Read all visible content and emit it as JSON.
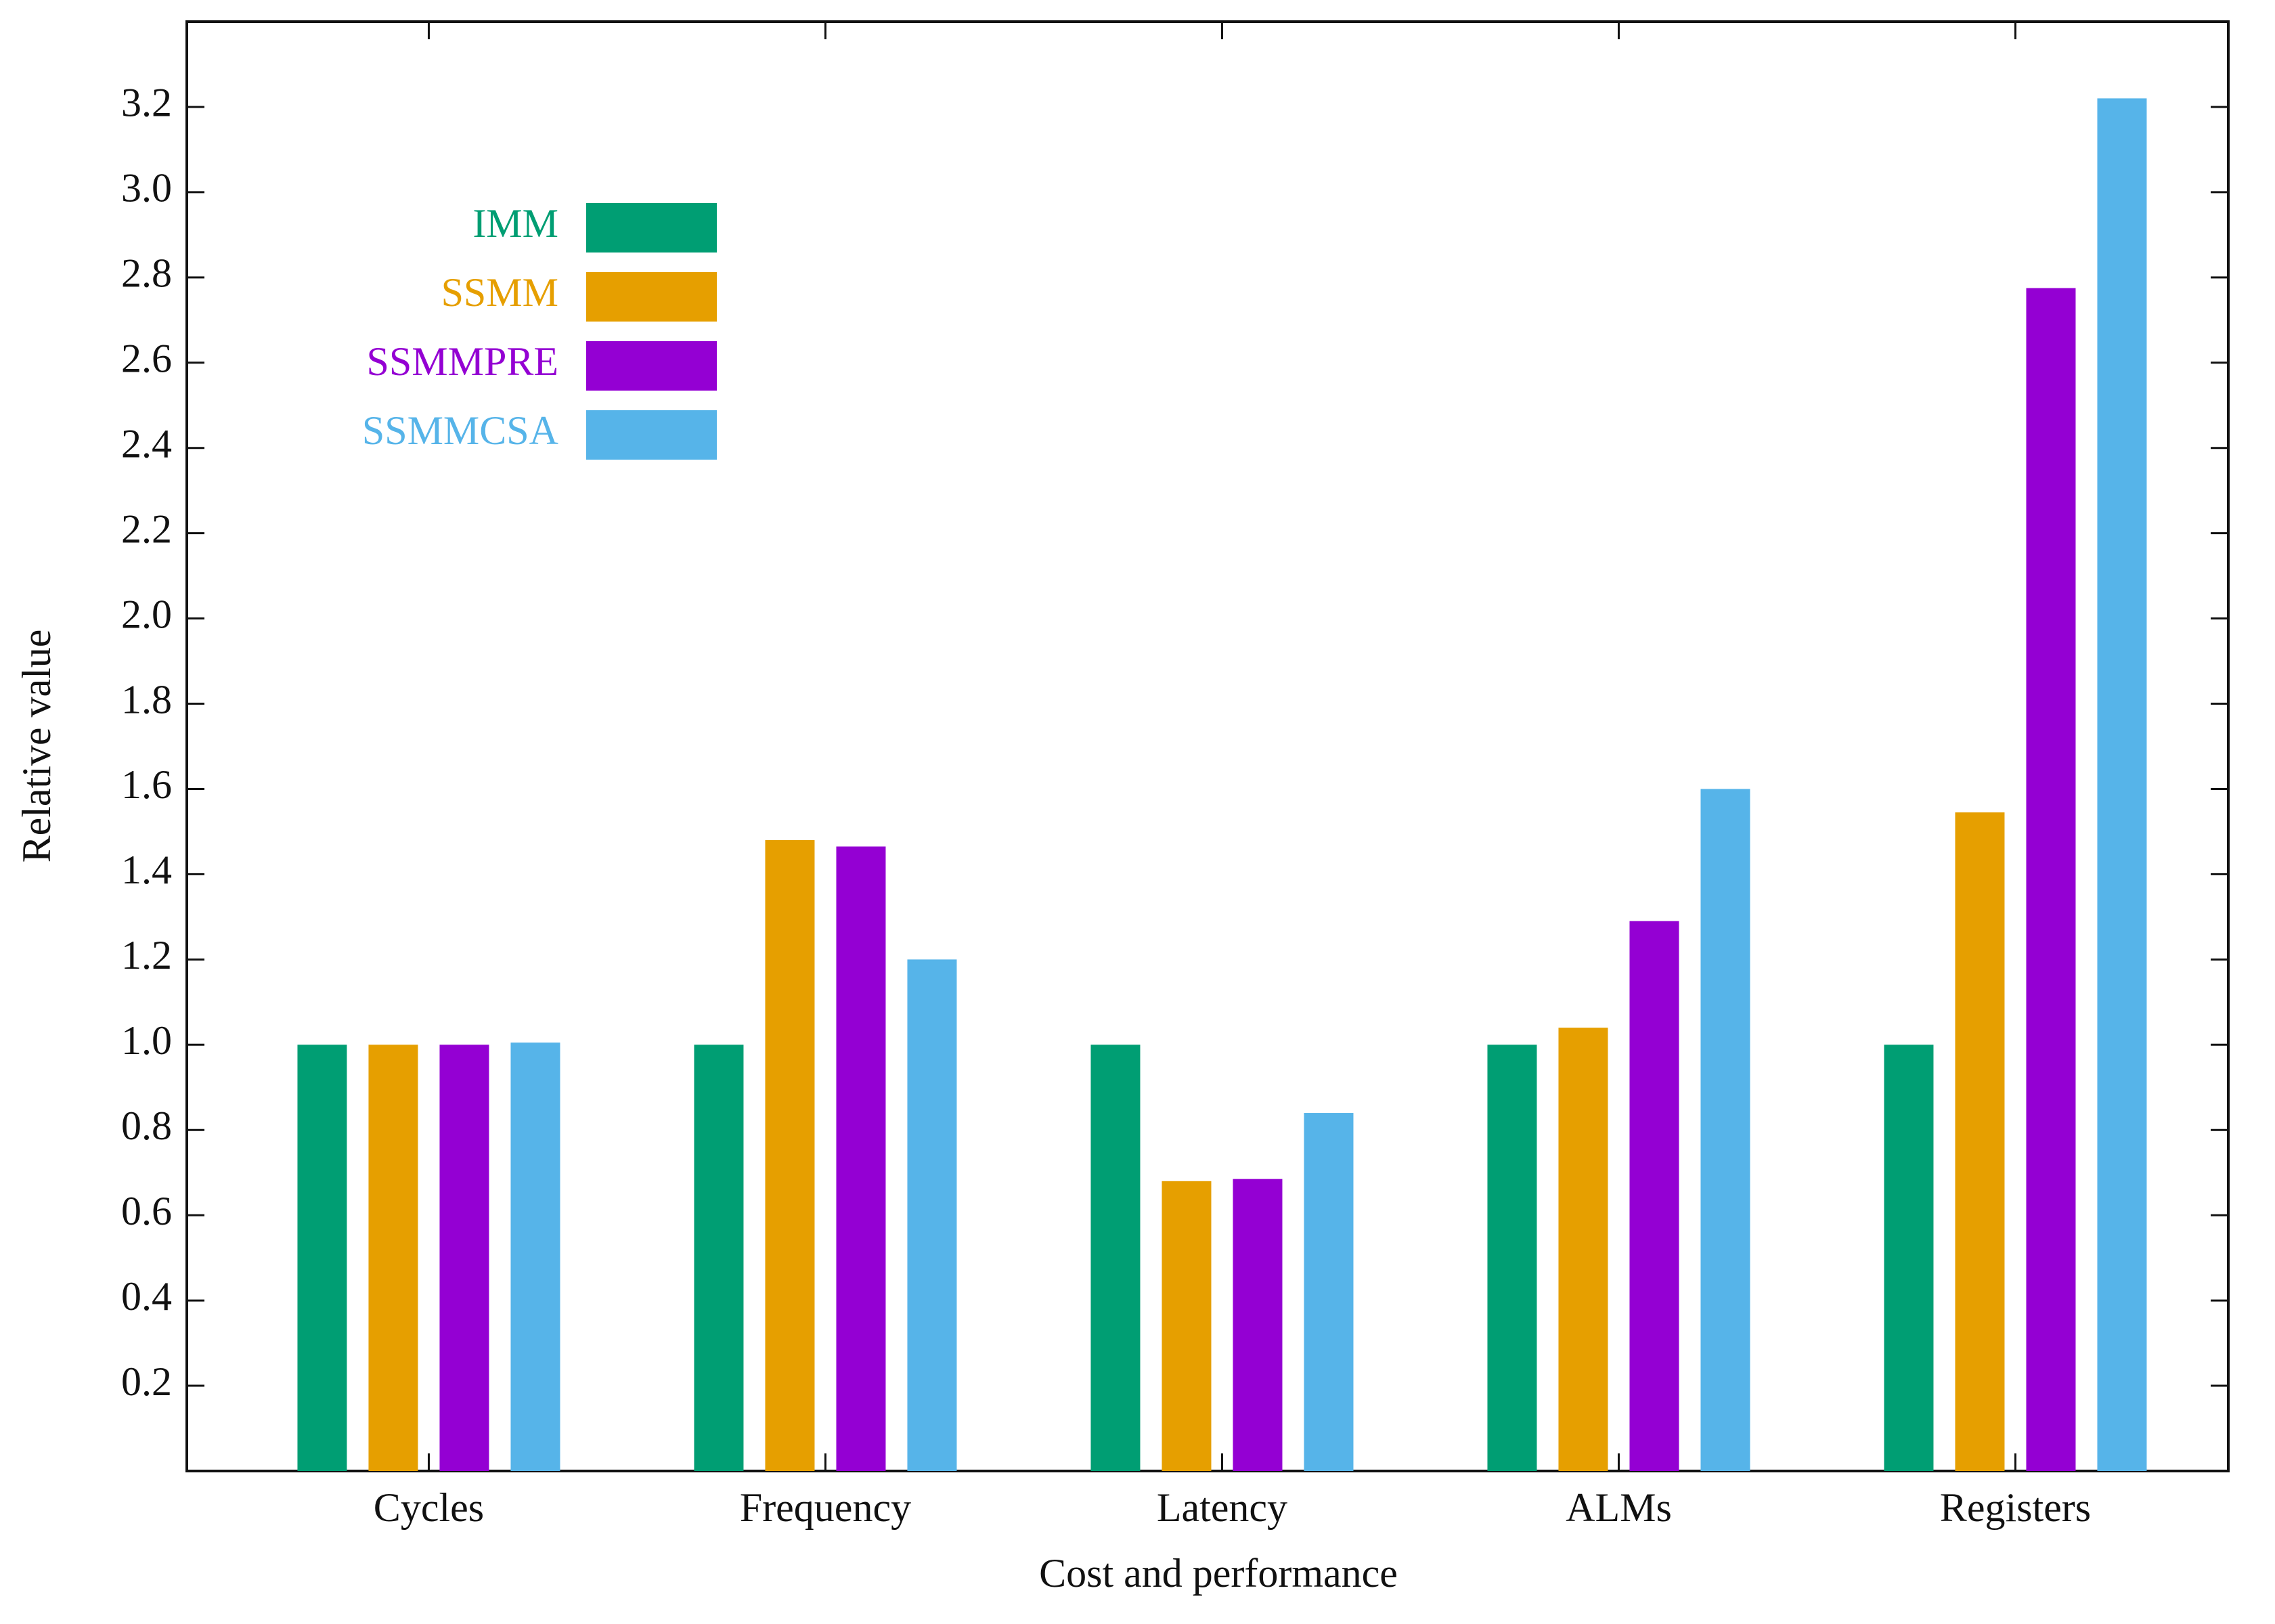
{
  "chart_data": {
    "type": "bar",
    "x_label": "Cost and performance",
    "y_label": "Relative value",
    "categories": [
      "Cycles",
      "Frequency",
      "Latency",
      "ALMs",
      "Registers"
    ],
    "series": [
      {
        "name": "IMM",
        "color": "#009e73",
        "values": [
          1.0,
          1.0,
          1.0,
          1.0,
          1.0
        ]
      },
      {
        "name": "SSMM",
        "color": "#e69f00",
        "values": [
          1.0,
          1.48,
          0.68,
          1.04,
          1.545
        ]
      },
      {
        "name": "SSMMPRE",
        "color": "#9400d3",
        "values": [
          1.0,
          1.465,
          0.685,
          1.29,
          2.775
        ]
      },
      {
        "name": "SSMMCSA",
        "color": "#56b4e9",
        "values": [
          1.005,
          1.2,
          0.84,
          1.6,
          3.22
        ]
      }
    ],
    "ylim": [
      0,
      3.4
    ],
    "yticks": [
      0.2,
      0.4,
      0.6,
      0.8,
      {
        "value": 1,
        "label": "1.0"
      },
      1.2,
      1.4,
      1.6,
      1.8,
      {
        "value": 2,
        "label": "2.0"
      },
      2.2,
      2.4,
      2.6,
      2.8,
      {
        "value": 3,
        "label": "3.0"
      },
      3.2
    ],
    "legend": "upper left",
    "grid": false
  }
}
